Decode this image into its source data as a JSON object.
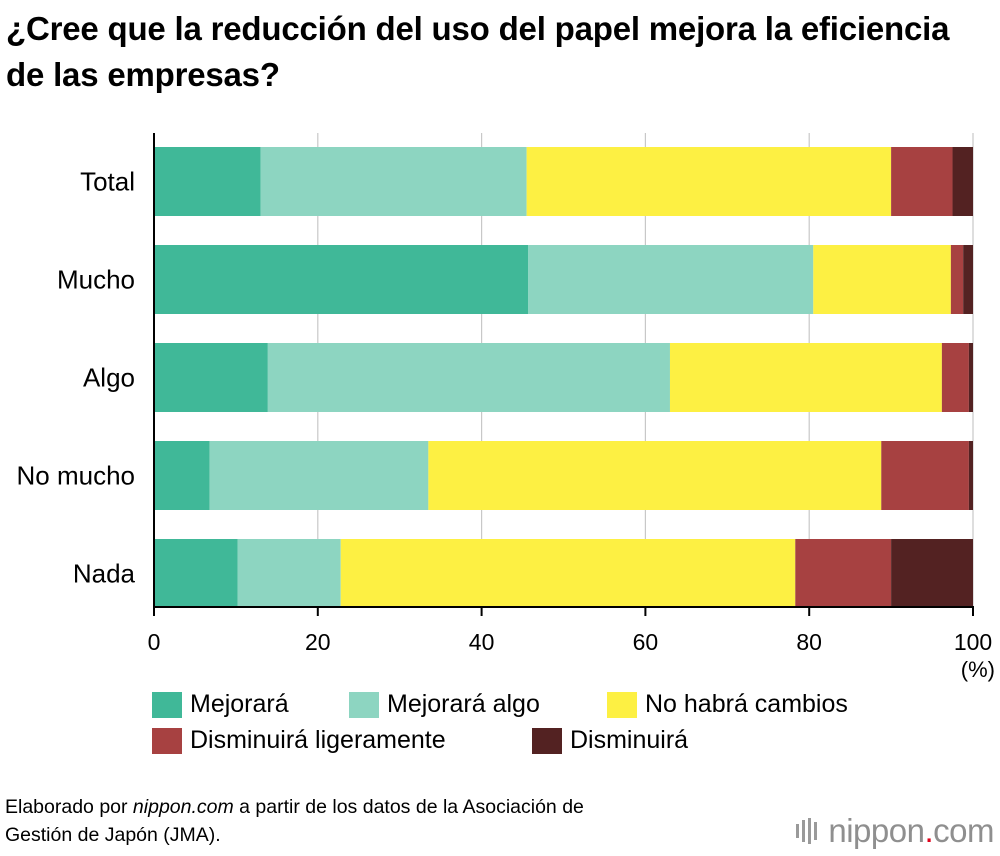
{
  "title": "¿Cree que la reducción del uso del papel mejora la eficiencia de las empresas?",
  "chart_data": {
    "type": "bar",
    "orientation": "horizontal",
    "stacked": true,
    "categories": [
      "Total",
      "Mucho",
      "Algo",
      "No mucho",
      "Nada"
    ],
    "series": [
      {
        "name": "Mejorará",
        "color": "#40b898",
        "values": [
          13.0,
          45.7,
          13.9,
          6.8,
          10.2
        ]
      },
      {
        "name": "Mejorará algo",
        "color": "#8dd5c1",
        "values": [
          32.5,
          34.8,
          49.1,
          26.7,
          12.6
        ]
      },
      {
        "name": "No habrá cambios",
        "color": "#fdf043",
        "values": [
          44.5,
          16.8,
          33.2,
          55.3,
          55.5
        ]
      },
      {
        "name": "Disminuirá ligeramente",
        "color": "#a74141",
        "values": [
          7.5,
          1.5,
          3.3,
          10.7,
          11.7
        ]
      },
      {
        "name": "Disminuirá",
        "color": "#532222",
        "values": [
          2.5,
          1.2,
          0.5,
          0.5,
          10.0
        ]
      }
    ],
    "xlim": [
      0,
      100
    ],
    "xticks": [
      0,
      20,
      40,
      60,
      80,
      100
    ],
    "xunit": "(%)",
    "grid": true
  },
  "legend_rows": [
    [
      "Mejorará",
      "Mejorará algo",
      "No habrá cambios"
    ],
    [
      "Disminuirá ligeramente",
      "Disminuirá"
    ]
  ],
  "source": {
    "prefix": "Elaborado por ",
    "site": "nippon.com",
    "suffix_line1": " a partir de los datos de la Asociación de",
    "line2": "Gestión de Japón (JMA)."
  },
  "logo": {
    "name": "nippon",
    "dot": ".",
    "tld": "com"
  }
}
